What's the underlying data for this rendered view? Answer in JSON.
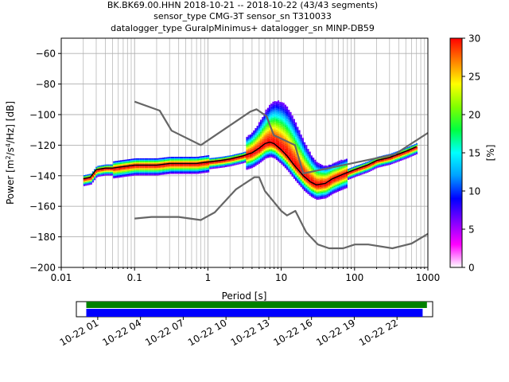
{
  "chart_data": [
    {
      "type": "heatmap",
      "title_lines": [
        "BK.BK69.00.HHN   2018-10-21 -- 2018-10-22  (43/43 segments)",
        "sensor_type CMG-3T sensor_sn T310033",
        "datalogger_type GuralpMinimus+ datalogger_sn MINP-DB59"
      ],
      "xlabel": "Period [s]",
      "ylabel_parts": [
        "Power [m",
        "2",
        "/s",
        "4",
        "/Hz] [dB]"
      ],
      "xscale": "log",
      "xlim": [
        0.01,
        1000
      ],
      "ylim": [
        -200,
        -50
      ],
      "x_ticks": [
        0.01,
        0.1,
        1,
        10,
        100,
        1000
      ],
      "x_tick_labels": [
        "0.01",
        "0.1",
        "1",
        "10",
        "100",
        "1000"
      ],
      "y_ticks": [
        -200,
        -180,
        -160,
        -140,
        -120,
        -100,
        -80,
        -60
      ],
      "y_tick_labels": [
        "−200",
        "−180",
        "−160",
        "−140",
        "−120",
        "−100",
        "−80",
        "−60"
      ],
      "grid": true,
      "colorbar": {
        "label": "[%]",
        "range": [
          0,
          30
        ],
        "ticks": [
          0,
          5,
          10,
          15,
          20,
          25,
          30
        ],
        "tick_labels": [
          "0",
          "5",
          "10",
          "15",
          "20",
          "25",
          "30"
        ],
        "colormap": [
          "#ffffff",
          "#ff00ff",
          "#8000ff",
          "#0000ff",
          "#00a0ff",
          "#00ffff",
          "#00ff40",
          "#80ff00",
          "#ffff00",
          "#ff8000",
          "#ff0000"
        ]
      },
      "series": [
        {
          "role": "mean",
          "color": "#000000",
          "x": [
            0.02,
            0.025,
            0.03,
            0.04,
            0.05,
            0.07,
            0.1,
            0.15,
            0.2,
            0.3,
            0.5,
            0.7,
            1,
            1.5,
            2,
            3,
            4,
            5,
            6,
            7,
            8,
            10,
            12,
            15,
            20,
            25,
            30,
            40,
            50,
            70,
            100,
            150,
            200,
            300,
            500,
            700
          ],
          "y": [
            -142,
            -141,
            -136,
            -135,
            -135,
            -134,
            -133,
            -133,
            -133,
            -132,
            -132,
            -132,
            -131,
            -130,
            -129,
            -127,
            -125,
            -122,
            -119,
            -118,
            -119,
            -123,
            -127,
            -133,
            -140,
            -144,
            -146,
            -145,
            -142,
            -139,
            -136,
            -133,
            -130,
            -128,
            -124,
            -121
          ]
        },
        {
          "role": "low-noise model",
          "color": "#666666",
          "x": [
            0.1,
            0.17,
            0.4,
            0.8,
            1.24,
            2.4,
            4.3,
            5,
            6,
            10,
            12,
            15.6,
            21.9,
            31.6,
            45,
            70,
            101,
            154,
            328,
            600,
            1000
          ],
          "y": [
            -168,
            -167,
            -167,
            -169,
            -164,
            -149,
            -141,
            -141,
            -150,
            -163,
            -166,
            -163,
            -177,
            -185,
            -187.5,
            -187.5,
            -185,
            -185,
            -187.5,
            -184.4,
            -178
          ]
        },
        {
          "role": "high-noise model",
          "color": "#666666",
          "x": [
            0.1,
            0.22,
            0.32,
            0.8,
            3.8,
            4.6,
            6.3,
            7.9,
            15.4,
            20,
            354.8,
            1000
          ],
          "y": [
            -91.5,
            -97.4,
            -110.5,
            -120,
            -98,
            -96.5,
            -101,
            -113.5,
            -120,
            -138.5,
            -126,
            -112
          ]
        }
      ]
    },
    {
      "type": "timeline",
      "x_tick_labels": [
        "10-22 01",
        "10-22 04",
        "10-22 07",
        "10-22 10",
        "10-22 13",
        "10-22 16",
        "10-22 19",
        "10-22 22"
      ],
      "x_ticks_hours": [
        1,
        4,
        7,
        10,
        13,
        16,
        19,
        22
      ],
      "range_hours": [
        -0.5,
        24.5
      ],
      "bars": [
        {
          "name": "available",
          "color": "#008000",
          "start_hour": 0.2,
          "end_hour": 24.1
        },
        {
          "name": "used",
          "color": "#0000ff",
          "start_hour": 0.2,
          "end_hour": 23.8
        }
      ]
    }
  ]
}
